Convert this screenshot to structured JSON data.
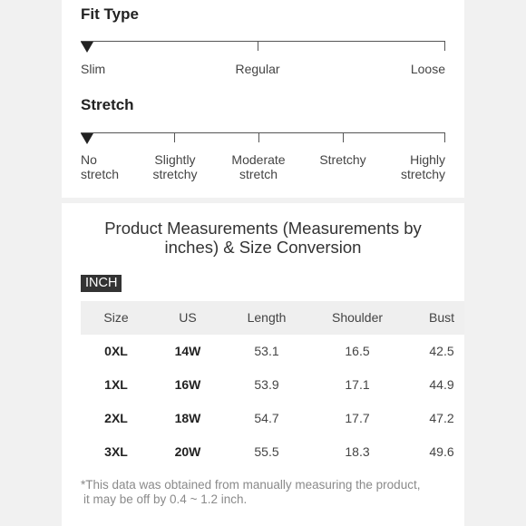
{
  "fit_type": {
    "title": "Fit Type",
    "options": [
      "Slim",
      "Regular",
      "Loose"
    ],
    "selected_index": 0
  },
  "stretch": {
    "title": "Stretch",
    "options": [
      [
        "No",
        "stretch"
      ],
      [
        "Slightly",
        "stretchy"
      ],
      [
        "Moderate",
        "stretch"
      ],
      [
        "Stretchy"
      ],
      [
        "Highly",
        "stretchy"
      ]
    ],
    "selected_index": 0
  },
  "measurements": {
    "title_line1": "Product Measurements (Measurements by",
    "title_line2": "inches) & Size Conversion",
    "unit": "INCH",
    "columns": [
      "Size",
      "US",
      "Length",
      "Shoulder",
      "Bust"
    ],
    "rows": [
      [
        "0XL",
        "14W",
        "53.1",
        "16.5",
        "42.5"
      ],
      [
        "1XL",
        "16W",
        "53.9",
        "17.1",
        "44.9"
      ],
      [
        "2XL",
        "18W",
        "54.7",
        "17.7",
        "47.2"
      ],
      [
        "3XL",
        "20W",
        "55.5",
        "18.3",
        "49.6"
      ]
    ],
    "note_line1": "*This data was obtained from manually measuring the product,",
    "note_line2": "it may be off by 0.4 ~ 1.2 inch."
  }
}
